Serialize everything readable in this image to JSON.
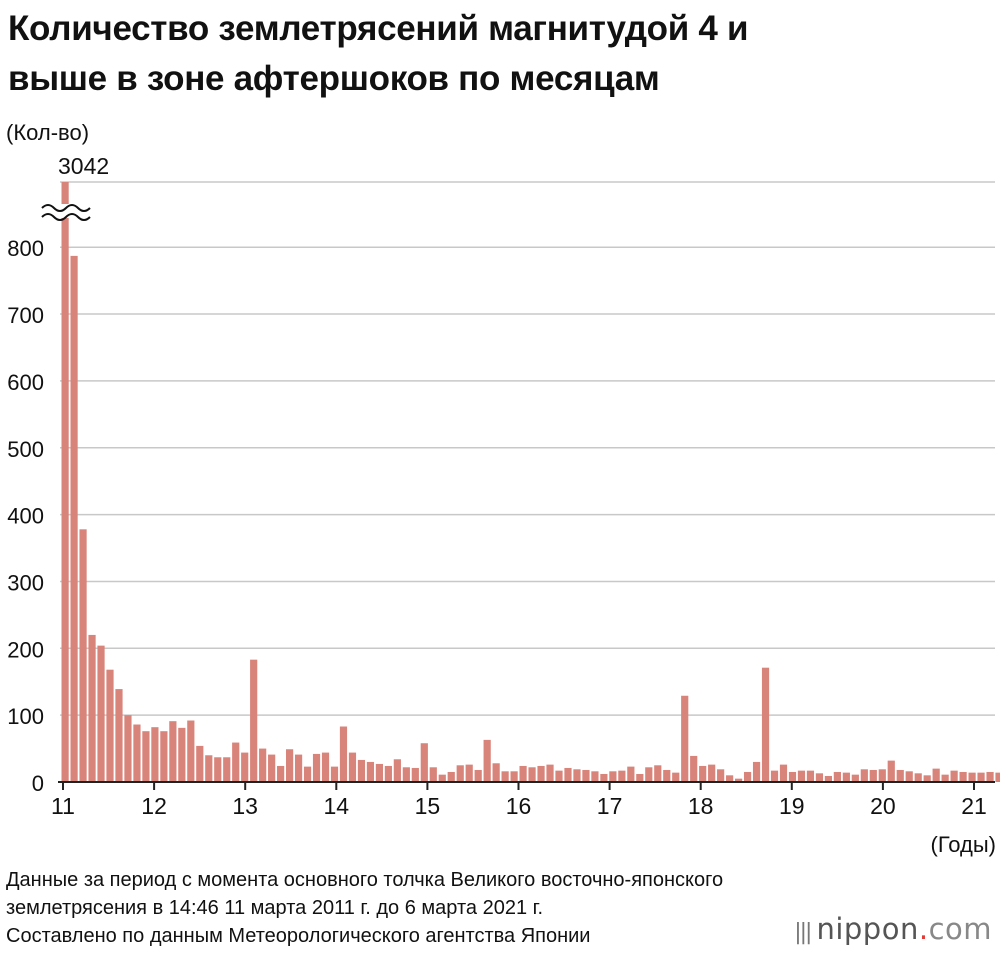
{
  "title": {
    "line1": "Количество землетрясений магнитудой 4 и",
    "line2": "выше в зоне афтершоков по месяцам"
  },
  "footnote": {
    "line1": "Данные за период с момента основного толчка Великого восточно-японского",
    "line2": "землетрясения в 14:46 11 марта 2011 г. до 6 марта 2021 г.",
    "line3": "Составлено по данным Метеорологического агентства Японии"
  },
  "brand": {
    "bars": "|||",
    "name": "nippon",
    "dot": ".",
    "tld": "com",
    "dot_color": "#e53935"
  },
  "colors": {
    "bar": "#d9847b",
    "grid": "#c8c8c8",
    "axis": "#222222"
  },
  "chart_data": {
    "type": "bar",
    "ylabel": "(Кол-во)",
    "xlabel": "(Годы)",
    "ylim": [
      0,
      900
    ],
    "y_ticks": [
      0,
      100,
      200,
      300,
      400,
      500,
      600,
      700,
      800
    ],
    "x_ticks": [
      "11",
      "12",
      "13",
      "14",
      "15",
      "16",
      "17",
      "18",
      "19",
      "20",
      "21"
    ],
    "grid": true,
    "axis_break": true,
    "annotation": {
      "text": "3042",
      "bar_index": 0
    },
    "series": [
      {
        "values": [
          3042,
          787,
          378,
          220,
          204,
          168,
          139,
          100,
          86,
          76,
          82,
          76,
          91,
          81,
          92,
          54,
          40,
          37,
          37,
          59,
          44,
          183,
          50,
          41,
          24,
          49,
          41,
          23,
          42,
          44,
          23,
          83,
          44,
          33,
          30,
          27,
          24,
          34,
          22,
          21,
          58,
          22,
          11,
          15,
          25,
          26,
          18,
          63,
          28,
          16,
          16,
          24,
          22,
          24,
          26,
          17,
          21,
          19,
          18,
          16,
          12,
          16,
          17,
          23,
          12,
          22,
          25,
          18,
          14,
          129,
          39,
          24,
          26,
          19,
          10,
          5,
          15,
          30,
          171,
          17,
          26,
          15,
          17,
          17,
          13,
          9,
          15,
          14,
          11,
          19,
          18,
          19,
          32,
          18,
          16,
          13,
          10,
          20,
          11,
          17,
          15,
          14,
          14,
          15,
          14,
          14,
          14,
          15,
          15,
          14,
          9,
          13,
          13,
          14,
          15,
          11,
          25,
          13,
          8,
          15,
          18,
          54
        ]
      }
    ]
  }
}
